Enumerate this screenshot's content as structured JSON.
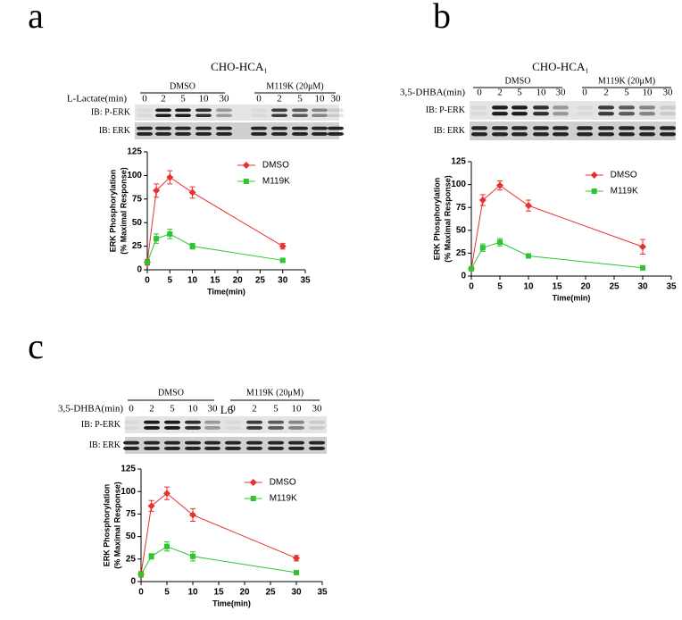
{
  "panels": [
    {
      "letter": "a",
      "cell_line": "CHO-HCA₁",
      "treatment_label": "L-Lactate(min)",
      "groups": [
        {
          "label": "DMSO",
          "lanes": [
            0,
            2,
            5,
            10,
            30
          ]
        },
        {
          "label": "M119K (20μM)",
          "lanes": [
            0,
            2,
            5,
            10,
            30
          ]
        }
      ],
      "blots": [
        "IB: P-ERK",
        "IB: ERK"
      ]
    },
    {
      "letter": "b",
      "cell_line": "CHO-HCA₁",
      "treatment_label": "3,5-DHBA(min)",
      "groups": [
        {
          "label": "DMSO",
          "lanes": [
            0,
            2,
            5,
            10,
            30
          ]
        },
        {
          "label": "M119K (20μM)",
          "lanes": [
            0,
            2,
            5,
            10,
            30
          ]
        }
      ],
      "blots": [
        "IB: P-ERK",
        "IB: ERK"
      ]
    },
    {
      "letter": "c",
      "cell_line": "L6",
      "treatment_label": "3,5-DHBA(min)",
      "groups": [
        {
          "label": "DMSO",
          "lanes": [
            0,
            2,
            5,
            10,
            30
          ]
        },
        {
          "label": "M119K (20μM)",
          "lanes": [
            0,
            2,
            5,
            10,
            30
          ]
        }
      ],
      "blots": [
        "IB: P-ERK",
        "IB: ERK"
      ]
    }
  ],
  "chart_data": [
    {
      "type": "line",
      "x": [
        0,
        2,
        5,
        10,
        30
      ],
      "series": [
        {
          "name": "DMSO",
          "color": "#e8312f",
          "values": [
            8,
            84,
            98,
            82,
            25
          ],
          "errors": [
            3,
            7,
            7,
            6,
            3
          ]
        },
        {
          "name": "M119K",
          "color": "#2fc42f",
          "values": [
            8,
            33,
            38,
            25,
            10
          ],
          "errors": [
            2,
            5,
            5,
            3,
            1
          ]
        }
      ],
      "xlim": [
        0,
        35
      ],
      "ylim": [
        0,
        125
      ],
      "xticks": [
        0,
        5,
        10,
        15,
        20,
        25,
        30,
        35
      ],
      "yticks": [
        0,
        25,
        50,
        75,
        100,
        125
      ],
      "xlabel": "Time(min)",
      "ylabel": [
        "ERK Phosphorylation",
        "(% Maximal Response)"
      ],
      "legend": "upper right"
    },
    {
      "type": "line",
      "x": [
        0,
        2,
        5,
        10,
        30
      ],
      "series": [
        {
          "name": "DMSO",
          "color": "#e8312f",
          "values": [
            8,
            83,
            99,
            77,
            32
          ],
          "errors": [
            2,
            6,
            5,
            6,
            8
          ]
        },
        {
          "name": "M119K",
          "color": "#2fc42f",
          "values": [
            8,
            31,
            37,
            22,
            9
          ],
          "errors": [
            2,
            4,
            4,
            2,
            1
          ]
        }
      ],
      "xlim": [
        0,
        35
      ],
      "ylim": [
        0,
        125
      ],
      "xticks": [
        0,
        5,
        10,
        15,
        20,
        25,
        30,
        35
      ],
      "yticks": [
        0,
        25,
        50,
        75,
        100,
        125
      ],
      "xlabel": "Time(min)",
      "ylabel": [
        "ERK Phosphorylation",
        "(% Maximal Response)"
      ],
      "legend": "upper right"
    },
    {
      "type": "line",
      "x": [
        0,
        2,
        5,
        10,
        30
      ],
      "series": [
        {
          "name": "DMSO",
          "color": "#e8312f",
          "values": [
            8,
            84,
            98,
            74,
            26
          ],
          "errors": [
            3,
            6,
            7,
            7,
            3
          ]
        },
        {
          "name": "M119K",
          "color": "#2fc42f",
          "values": [
            8,
            28,
            39,
            28,
            10
          ],
          "errors": [
            2,
            3,
            5,
            5,
            1
          ]
        }
      ],
      "xlim": [
        0,
        35
      ],
      "ylim": [
        0,
        125
      ],
      "xticks": [
        0,
        5,
        10,
        15,
        20,
        25,
        30,
        35
      ],
      "yticks": [
        0,
        25,
        50,
        75,
        100,
        125
      ],
      "xlabel": "Time(min)",
      "ylabel": [
        "ERK Phosphorylation",
        "(% Maximal Response)"
      ],
      "legend": "upper right"
    }
  ]
}
